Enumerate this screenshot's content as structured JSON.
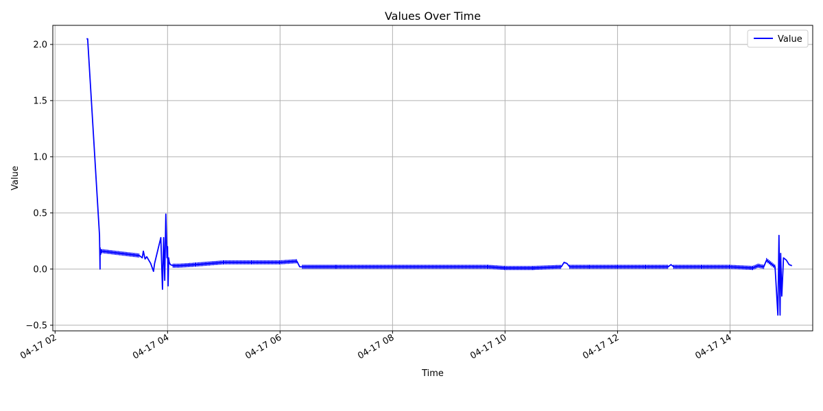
{
  "chart_data": {
    "type": "line",
    "title": "Values Over Time",
    "xlabel": "Time",
    "ylabel": "Value",
    "grid": true,
    "legend_position": "top-right",
    "x_ticks": [
      "04-17 02",
      "04-17 04",
      "04-17 06",
      "04-17 08",
      "04-17 10",
      "04-17 12",
      "04-17 14"
    ],
    "x_tick_hours": [
      2,
      4,
      6,
      8,
      10,
      12,
      14
    ],
    "x_range_hours": [
      1.96,
      15.47
    ],
    "y_ticks": [
      2.0,
      1.5,
      1.0,
      0.5,
      0.0,
      -0.5
    ],
    "y_tick_labels": [
      "2.0",
      "1.5",
      "1.0",
      "0.5",
      "0.0",
      "−0.5"
    ],
    "ylim": [
      -0.55,
      2.17
    ],
    "series": [
      {
        "name": "Value",
        "color": "#0000ff",
        "x_hours": [
          2.56,
          2.58,
          2.79,
          2.8,
          2.8,
          2.81,
          2.82,
          2.83,
          3.5,
          3.55,
          3.57,
          3.6,
          3.63,
          3.7,
          3.75,
          3.77,
          3.88,
          3.91,
          3.93,
          3.95,
          3.97,
          3.99,
          4.0,
          4.01,
          4.02,
          4.03,
          4.05,
          4.1,
          4.2,
          4.5,
          5.0,
          5.5,
          6.0,
          6.3,
          6.35,
          6.4,
          7.0,
          8.0,
          9.0,
          9.7,
          10.0,
          10.5,
          11.0,
          11.05,
          11.1,
          11.15,
          11.5,
          12.0,
          12.5,
          12.9,
          12.95,
          13.0,
          13.5,
          14.0,
          14.4,
          14.5,
          14.6,
          14.65,
          14.8,
          14.85,
          14.87,
          14.89,
          14.9,
          14.92,
          14.95,
          15.0,
          15.05,
          15.1
        ],
        "y_values": [
          2.05,
          2.05,
          0.3,
          0.0,
          0.19,
          0.13,
          0.17,
          0.16,
          0.12,
          0.1,
          0.16,
          0.09,
          0.11,
          0.05,
          -0.02,
          0.05,
          0.28,
          -0.18,
          0.28,
          -0.1,
          0.49,
          0.1,
          0.2,
          -0.15,
          0.1,
          0.06,
          0.04,
          0.03,
          0.03,
          0.04,
          0.06,
          0.06,
          0.06,
          0.07,
          0.02,
          0.02,
          0.02,
          0.02,
          0.02,
          0.02,
          0.01,
          0.01,
          0.02,
          0.06,
          0.05,
          0.02,
          0.02,
          0.02,
          0.02,
          0.02,
          0.04,
          0.02,
          0.02,
          0.02,
          0.01,
          0.03,
          0.02,
          0.08,
          0.02,
          -0.41,
          0.3,
          -0.41,
          0.14,
          -0.24,
          0.1,
          0.08,
          0.04,
          0.03
        ]
      }
    ]
  }
}
